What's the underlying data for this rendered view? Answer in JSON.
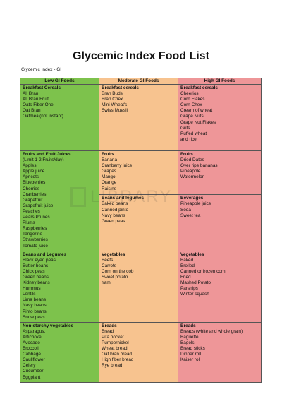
{
  "header": {
    "title": "Glycemic Index Food List",
    "subtitle": "Glycemic Index - GI"
  },
  "columns": {
    "low": "Low GI Foods",
    "moderate": "Moderate GI Foods",
    "high": "High GI Foods"
  },
  "colors": {
    "low": "#7dc24c",
    "moderate": "#f7c38f",
    "high": "#ee9698"
  },
  "watermark": {
    "text": "LIBRARY"
  },
  "rows": [
    {
      "low": {
        "cat": "Breakfast Cereals",
        "items": [
          "All Bran",
          "All Bran Fruit",
          "Oats Fiber One",
          "Oat Bran",
          "Oatmeal(not instant)"
        ]
      },
      "mod": {
        "cat": "Breakfast cereals",
        "items": [
          "Bran Buds",
          "Bran Chex",
          "Mini Wheat's",
          "Swiss Muesli"
        ]
      },
      "high": {
        "cat": "Breakfast cereals",
        "items": [
          "Cheerios",
          "Corn Flakes",
          "Corn Chex",
          "Cream of wheat",
          "Grape Nuts",
          "Grape Nut Flakes",
          "Grits",
          "Puffed wheat",
          "and rice"
        ]
      }
    },
    {
      "low": {
        "cat": "Fruits and Fruit Juices",
        "items": [
          "(Limit 1-2 Fruits/day)",
          "Apples",
          "Apple juice",
          "Apricots",
          "Blueberries",
          "Cherries",
          "Cranberries",
          "Grapefruit",
          "Grapefruit juice",
          "Peaches",
          "Pears Prunes",
          "Plums",
          "Raspberries",
          "Tangerine",
          "Strawberries",
          "Tomato juice"
        ]
      },
      "mod": {
        "cat": "Fruits",
        "items": [
          "Banana",
          "Cranberry juice",
          "Grapes",
          "Mango",
          "Orange",
          "Raisins"
        ]
      },
      "high": {
        "cat": "Fruits",
        "items": [
          "Dried Dates",
          "Over ripe bananas",
          "Pineapple",
          "Watermelon"
        ]
      }
    },
    {
      "mod": {
        "cat": "Beans and legumes",
        "items": [
          "Baked beans",
          "Canned pinto",
          "Navy beans",
          "Green peas"
        ]
      },
      "high": {
        "cat": "Beverages",
        "items": [
          "Pineapple juice",
          "Soda",
          "Sweet tea"
        ]
      }
    },
    {
      "low": {
        "cat": "Beans and Legumes",
        "items": [
          "Black eyed peas",
          "Butter beans",
          "Chick peas",
          "Green beans",
          "Kidney beans",
          "Hummus",
          "Lentils",
          "Lima beans",
          "Navy beans",
          "Pinto beans",
          "Snow peas"
        ]
      },
      "mod": {
        "cat": "Vegetables",
        "items": [
          "Beets",
          "Carrots",
          "Corn on the cob",
          "Sweet potato",
          "Yam"
        ]
      },
      "high": {
        "cat": "Vegetables",
        "items": [
          "Baked",
          "Broiled",
          "Canned or frozen corn",
          "Fried",
          "Mashed Potato",
          "Parsnips",
          "Winter squash"
        ]
      }
    },
    {
      "low": {
        "cat": "Non-starchy vegetables",
        "items": [
          "Asparagus,",
          "Artichoke",
          "Avocado",
          "Broccoli",
          "Cabbage",
          "Cauliflower",
          "Celery",
          "Cucumber",
          "Eggplant"
        ]
      },
      "mod": {
        "cat": "Breads",
        "items": [
          "Bread",
          "Pita pocket",
          "Pumpernickel",
          "Wheat bread",
          "Oat bran bread",
          "High fiber bread",
          "Rye bread"
        ]
      },
      "high": {
        "cat": "Breads",
        "items": [
          "Breads (white and whole grain)",
          "Baguette",
          "Bagels",
          "Bread sticks",
          "Dinner roll",
          "Kaiser roll"
        ]
      }
    }
  ]
}
